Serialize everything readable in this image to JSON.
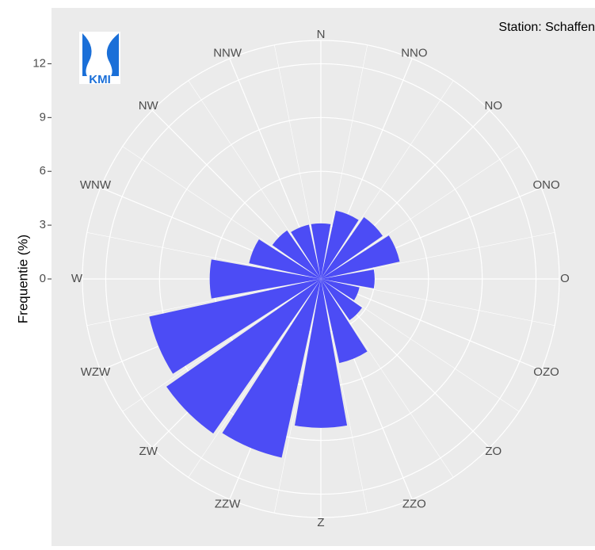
{
  "chart_data": {
    "type": "polar_bar",
    "annotation": "Station: Schaffen",
    "logo_text": "KMI",
    "y_label": "Frequentie (%)",
    "categories": [
      "N",
      "NNO",
      "NO",
      "ONO",
      "O",
      "OZO",
      "ZO",
      "ZZO",
      "Z",
      "ZZW",
      "ZW",
      "WZW",
      "W",
      "WNW",
      "NW",
      "NNW"
    ],
    "values": [
      3.1,
      3.9,
      4.2,
      4.5,
      3.0,
      2.2,
      2.8,
      4.8,
      8.3,
      10.2,
      10.5,
      9.8,
      6.2,
      4.1,
      3.3,
      3.1
    ],
    "color": "#4c4cf5",
    "ylim": [
      0,
      13.3
    ],
    "yticks": [
      0,
      3,
      6,
      9,
      12
    ],
    "grid": true
  }
}
